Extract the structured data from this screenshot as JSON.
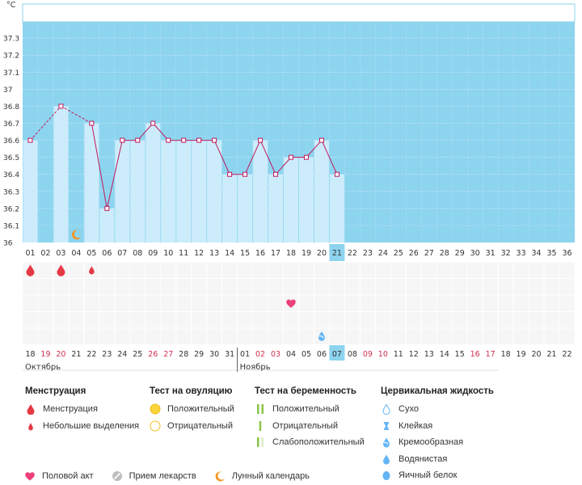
{
  "chart_data": {
    "type": "bar",
    "unit": "°C",
    "ylim": [
      36,
      37.4
    ],
    "y_ticks": [
      "36",
      "36.1",
      "36.2",
      "36.3",
      "36.4",
      "36.5",
      "36.6",
      "36.7",
      "36.8",
      "37",
      "37.1",
      "37.2",
      "37.3"
    ],
    "cycle_days": [
      "01",
      "02",
      "03",
      "04",
      "05",
      "06",
      "07",
      "08",
      "09",
      "10",
      "11",
      "12",
      "13",
      "14",
      "15",
      "16",
      "17",
      "18",
      "19",
      "20",
      "21",
      "22",
      "23",
      "24",
      "25",
      "26",
      "27",
      "28",
      "29",
      "30",
      "31",
      "32",
      "33",
      "34",
      "35",
      "36"
    ],
    "current_day_index": 20,
    "temperatures": [
      36.6,
      null,
      36.8,
      null,
      36.7,
      36.2,
      36.6,
      36.6,
      36.7,
      36.6,
      36.6,
      36.6,
      36.6,
      36.4,
      36.4,
      36.6,
      36.4,
      36.5,
      36.5,
      36.6,
      36.4,
      null,
      null,
      null,
      null,
      null,
      null,
      null,
      null,
      null,
      null,
      null,
      null,
      null,
      null,
      null
    ],
    "dates": [
      "18",
      "19",
      "20",
      "21",
      "22",
      "23",
      "24",
      "25",
      "26",
      "27",
      "28",
      "29",
      "30",
      "31",
      "01",
      "02",
      "03",
      "04",
      "05",
      "06",
      "07",
      "08",
      "09",
      "10",
      "11",
      "12",
      "13",
      "14",
      "15",
      "16",
      "17",
      "18",
      "19",
      "20",
      "21",
      "22"
    ],
    "weekend_date_indices": [
      1,
      2,
      8,
      9,
      15,
      16,
      22,
      23,
      29,
      30
    ],
    "month_labels": [
      {
        "label": "Октябрь",
        "start_index": 0
      },
      {
        "label": "Ноябрь",
        "start_index": 14
      }
    ],
    "events": [
      {
        "type": "menstruation",
        "day_index": 0
      },
      {
        "type": "menstruation",
        "day_index": 2
      },
      {
        "type": "spotting",
        "day_index": 4
      },
      {
        "type": "intercourse",
        "day_index": 17
      },
      {
        "type": "cervical-creamy",
        "day_index": 19
      },
      {
        "type": "lunar",
        "day_index": 3
      }
    ]
  },
  "legend": {
    "menstruation": {
      "title": "Менструация",
      "items": [
        "Менструация",
        "Небольшие выделения"
      ]
    },
    "ovulation": {
      "title": "Тест на овуляцию",
      "items": [
        "Положительный",
        "Отрицательный"
      ]
    },
    "pregnancy": {
      "title": "Тест на беременность",
      "items": [
        "Положительный",
        "Отрицательный",
        "Слабоположительный"
      ]
    },
    "cervical": {
      "title": "Цервикальная жидкость",
      "items": [
        "Сухо",
        "Клейкая",
        "Кремообразная",
        "Водянистая",
        "Яичный белок"
      ]
    },
    "bottom": [
      "Половой акт",
      "Прием лекарств",
      "Лунный календарь"
    ]
  },
  "colors": {
    "background": "#8dd4ef",
    "bar": "#ccecfb",
    "line": "#c2185b",
    "highlight": "#8dd4ef",
    "weekend": "#d32f4f",
    "blood": "#e53945",
    "heart": "#ec407a",
    "lunar": "#f7941d",
    "ovulation": "#f9d43a",
    "pregnancy": "#8bc34a",
    "cervical": "#64b5f6"
  }
}
